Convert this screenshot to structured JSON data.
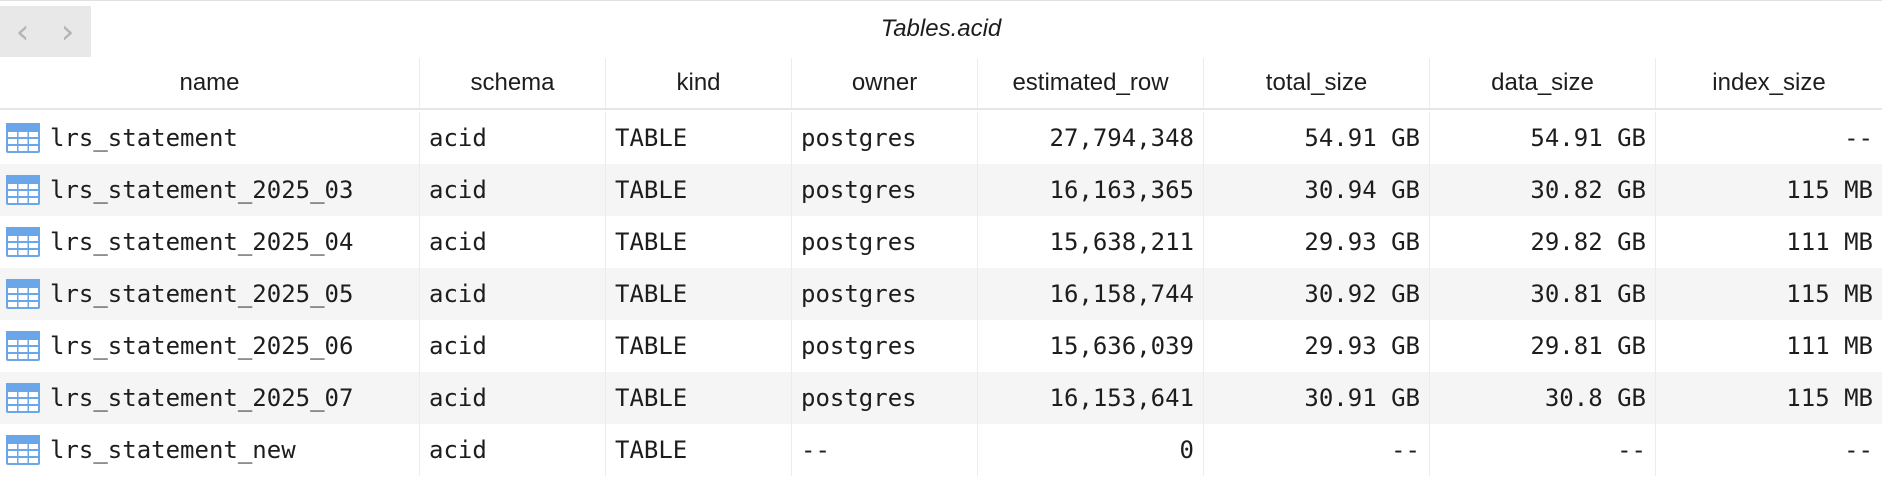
{
  "window": {
    "title": "Tables.acid"
  },
  "nav": {
    "back_icon": "chevron-left-icon",
    "forward_icon": "chevron-right-icon",
    "back_glyph": "‹",
    "forward_glyph": "›"
  },
  "colors": {
    "icon_blue": "#6aa6e8",
    "alt_row": "#f5f5f5",
    "grid": "#ececec"
  },
  "table": {
    "columns": [
      "name",
      "schema",
      "kind",
      "owner",
      "estimated_row",
      "total_size",
      "data_size",
      "index_size"
    ],
    "rows": [
      [
        "lrs_statement",
        "acid",
        "TABLE",
        "postgres",
        "27,794,348",
        "54.91 GB",
        "54.91 GB",
        "--"
      ],
      [
        "lrs_statement_2025_03",
        "acid",
        "TABLE",
        "postgres",
        "16,163,365",
        "30.94 GB",
        "30.82 GB",
        "115 MB"
      ],
      [
        "lrs_statement_2025_04",
        "acid",
        "TABLE",
        "postgres",
        "15,638,211",
        "29.93 GB",
        "29.82 GB",
        "111 MB"
      ],
      [
        "lrs_statement_2025_05",
        "acid",
        "TABLE",
        "postgres",
        "16,158,744",
        "30.92 GB",
        "30.81 GB",
        "115 MB"
      ],
      [
        "lrs_statement_2025_06",
        "acid",
        "TABLE",
        "postgres",
        "15,636,039",
        "29.93 GB",
        "29.81 GB",
        "111 MB"
      ],
      [
        "lrs_statement_2025_07",
        "acid",
        "TABLE",
        "postgres",
        "16,153,641",
        "30.91 GB",
        "30.8 GB",
        "115 MB"
      ],
      [
        "lrs_statement_new",
        "acid",
        "TABLE",
        "--",
        "0",
        "--",
        "--",
        "--"
      ]
    ]
  }
}
